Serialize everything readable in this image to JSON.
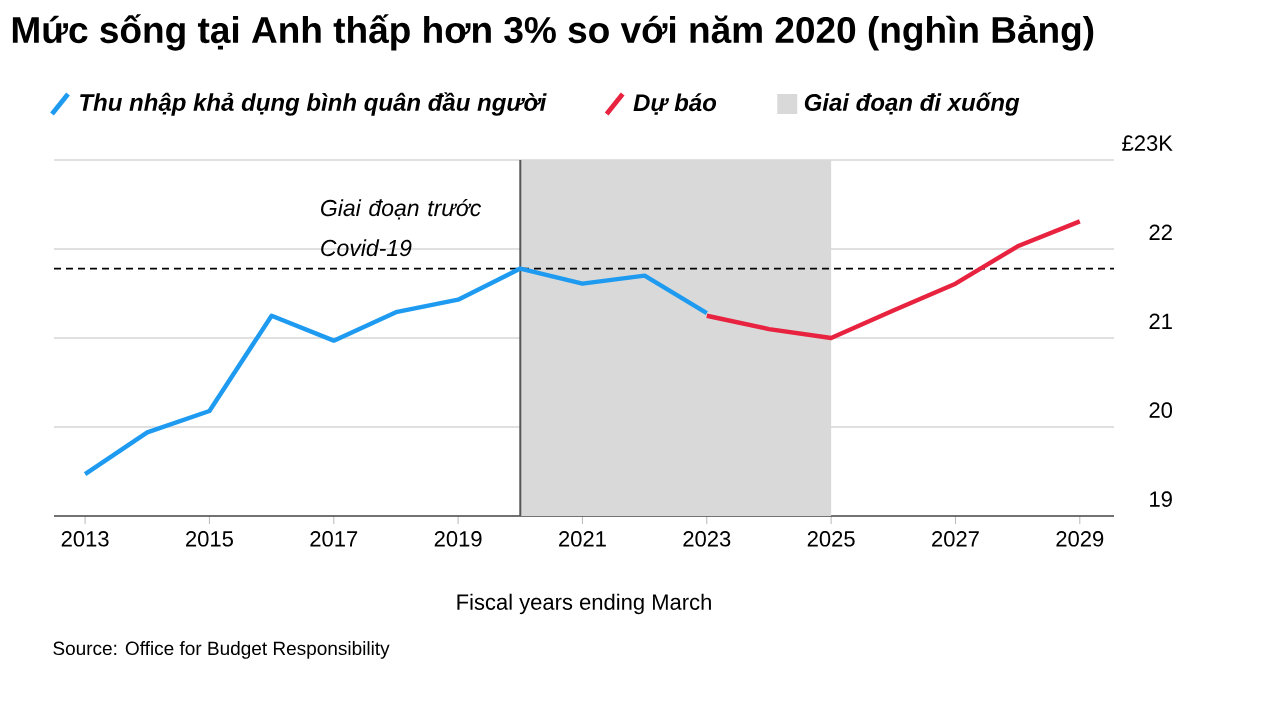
{
  "chart_data": {
    "type": "line",
    "title": "Mức sống tại Anh thấp hơn 3% so với năm 2020 (nghìn Bảng)",
    "xlabel": "Fiscal years ending March",
    "annotations": [
      "Source: Office for Budget Responsibility"
    ],
    "series": [
      {
        "name": "Thu nhập khả dụng bình quân đầu người",
        "color": "#1e9bf0",
        "x": [
          2013,
          2014,
          2015,
          2016,
          2017,
          2018,
          2019,
          2020,
          2021,
          2022,
          2023
        ],
        "values": [
          19.47,
          19.94,
          20.18,
          21.25,
          20.97,
          21.29,
          21.43,
          21.78,
          21.61,
          21.7,
          21.28
        ]
      },
      {
        "name": "Dự báo",
        "color": "#e8233f",
        "x": [
          2023,
          2024,
          2025,
          2026,
          2027,
          2028,
          2029
        ],
        "values": [
          21.25,
          21.1,
          21.0,
          21.31,
          21.61,
          22.03,
          22.31
        ]
      }
    ],
    "xlim": [
      2012.5,
      2029.55
    ],
    "xticks": [
      2013,
      2015,
      2017,
      2019,
      2021,
      2023,
      2025,
      2027,
      2029
    ],
    "ylim": [
      19,
      23
    ],
    "yticks": [
      19,
      20,
      21,
      22,
      {
        "value": 23,
        "label": "£23K"
      }
    ],
    "ref_lines": [
      {
        "axis": "y",
        "value": 21.78,
        "line_style": "dashed",
        "color": "#000000"
      },
      {
        "axis": "x",
        "value": 2020,
        "label": "Giai đoạn trước Covid-19",
        "line_style": "solid",
        "color": "#555555"
      }
    ],
    "bands": [
      {
        "axis": "x",
        "from": 2020,
        "to": 2025,
        "label": "Giai đoạn đi xuống",
        "color": "#d9d9d9"
      }
    ],
    "grid": "y",
    "legend": "top",
    "marker": "none",
    "line_style": "solid"
  }
}
